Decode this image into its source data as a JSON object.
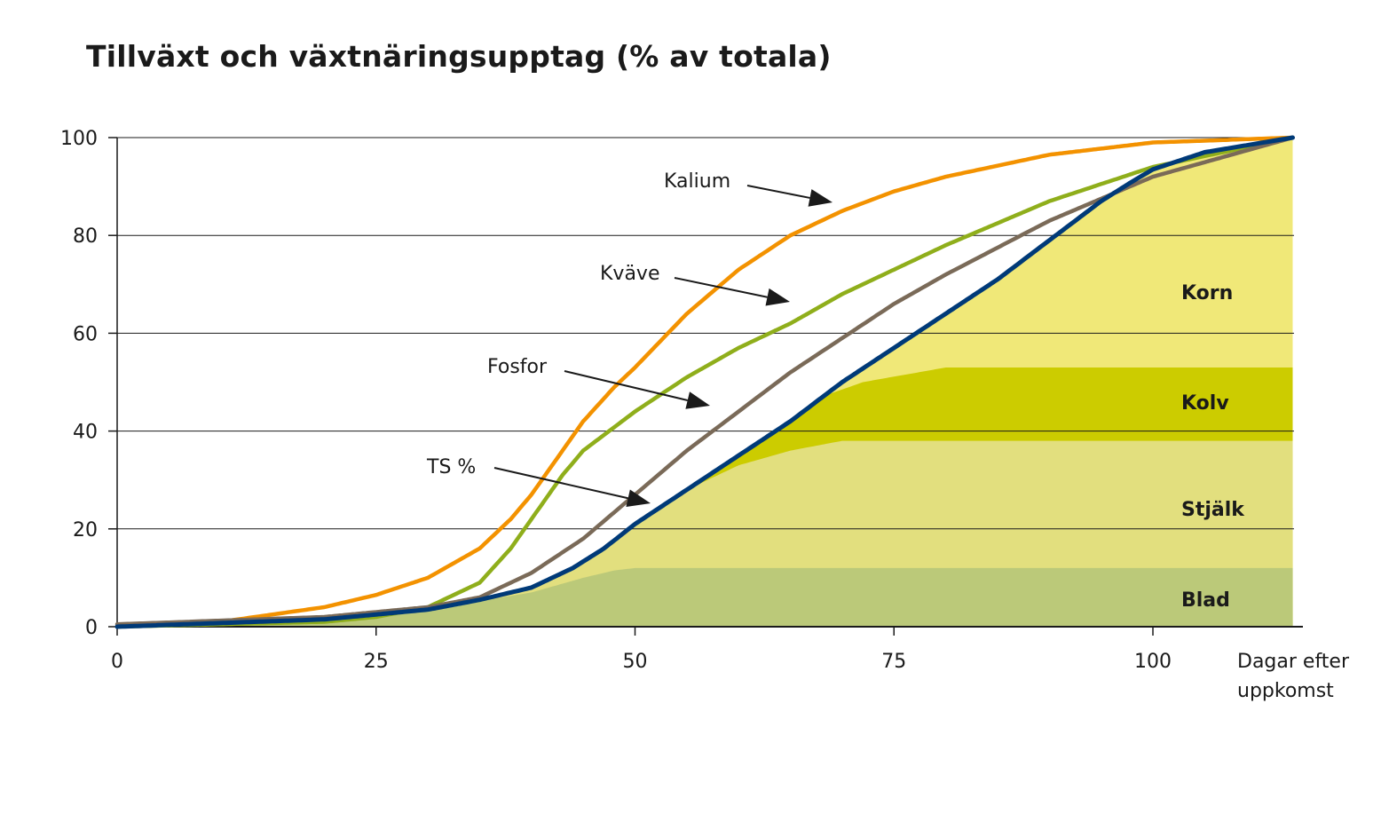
{
  "chart_data": {
    "type": "line",
    "title": "Tillväxt och växtnäringsupptag (% av totala)",
    "xlabel": "Dagar efter uppkomst",
    "xlabel_lines": [
      "Dagar efter",
      "uppkomst"
    ],
    "ylabel": "",
    "xlim": [
      0,
      113.5
    ],
    "ylim": [
      0,
      100
    ],
    "xticks": [
      0,
      25,
      50,
      75,
      100
    ],
    "yticks": [
      0,
      20,
      40,
      60,
      80,
      100
    ],
    "grid": true,
    "series": [
      {
        "name": "Kalium",
        "color": "#f39200",
        "x": [
          0,
          10,
          20,
          25,
          30,
          35,
          38,
          40,
          43,
          45,
          48,
          50,
          55,
          60,
          65,
          70,
          75,
          80,
          90,
          100,
          113.5
        ],
        "y": [
          0,
          1,
          4,
          6.5,
          10,
          16,
          22,
          27,
          36,
          42,
          49,
          53,
          64,
          73,
          80,
          85,
          89,
          92,
          96.5,
          99,
          100
        ]
      },
      {
        "name": "Kväve",
        "color": "#8fae1b",
        "x": [
          0,
          20,
          25,
          30,
          35,
          38,
          40,
          43,
          45,
          50,
          55,
          60,
          65,
          70,
          75,
          80,
          90,
          100,
          113.5
        ],
        "y": [
          0,
          1,
          2,
          4,
          9,
          16,
          22,
          31,
          36,
          44,
          51,
          57,
          62,
          68,
          73,
          78,
          87,
          94,
          100
        ]
      },
      {
        "name": "Fosfor",
        "color": "#7a6a58",
        "x": [
          0,
          20,
          25,
          30,
          35,
          40,
          45,
          50,
          55,
          60,
          65,
          70,
          75,
          80,
          90,
          100,
          113.5
        ],
        "y": [
          0.5,
          2,
          3,
          4,
          6,
          11,
          18,
          27,
          36,
          44,
          52,
          59,
          66,
          72,
          83,
          92,
          100
        ]
      },
      {
        "name": "TS %",
        "color": "#003a78",
        "x": [
          0,
          20,
          25,
          30,
          35,
          40,
          44,
          47,
          50,
          55,
          60,
          65,
          70,
          75,
          80,
          85,
          90,
          95,
          98,
          100,
          105,
          113.5
        ],
        "y": [
          0,
          1.5,
          2.5,
          3.5,
          5.5,
          8,
          12,
          16,
          21,
          28,
          35,
          42,
          50,
          57,
          64,
          71,
          79,
          87,
          91,
          93.5,
          97,
          100
        ]
      }
    ],
    "areas": [
      {
        "name": "Korn",
        "color": "#f0e878",
        "x": [
          0,
          113.5
        ],
        "y": [
          100,
          100
        ]
      },
      {
        "name": "Kolv",
        "color": "#cccc00",
        "x": [
          0,
          68,
          72,
          80,
          113.5
        ],
        "y": [
          0,
          47,
          50,
          53,
          53
        ]
      },
      {
        "name": "Stjälk",
        "color": "#e2df7e",
        "x": [
          0,
          55,
          60,
          65,
          70,
          113.5
        ],
        "y": [
          0,
          28,
          33,
          36,
          38,
          38
        ]
      },
      {
        "name": "Blad",
        "color": "#bbc979",
        "x": [
          0,
          20,
          30,
          40,
          45,
          48,
          50,
          113.5
        ],
        "y": [
          0,
          1,
          3.5,
          7,
          10,
          11.5,
          12,
          12
        ]
      }
    ],
    "annotations": [
      "Kalium",
      "Kväve",
      "Fosfor",
      "TS %"
    ]
  }
}
